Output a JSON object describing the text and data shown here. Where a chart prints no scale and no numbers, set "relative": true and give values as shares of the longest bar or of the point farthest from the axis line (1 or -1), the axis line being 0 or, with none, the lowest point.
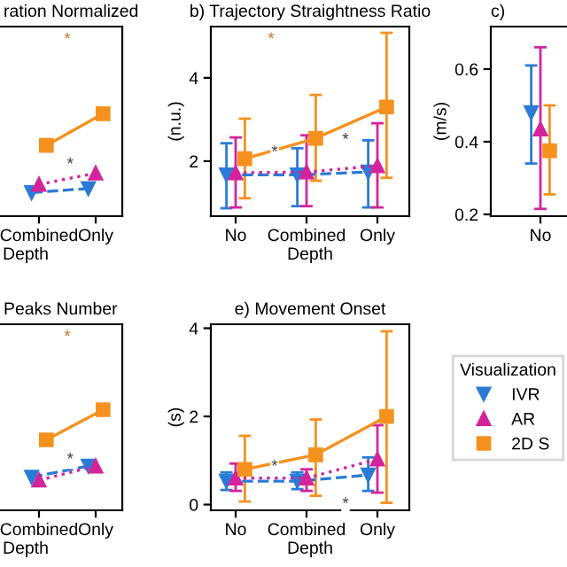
{
  "chart_data": [
    {
      "type": "line",
      "title": "ration Normalized",
      "xlabel": "Depth",
      "relative": true,
      "categories": [
        "Combined",
        "Only"
      ],
      "series": [
        {
          "color": "#2b7bd6",
          "line_style": "dashed",
          "marker": "triangle_down",
          "values": [
            0.23,
            0.27
          ]
        },
        {
          "color": "#d4249b",
          "line_style": "dotted",
          "marker": "triangle",
          "values": [
            0.31,
            0.42
          ]
        },
        {
          "color": "#f5911e",
          "line_style": "solid",
          "marker": "square",
          "values": [
            0.69,
            1.0
          ]
        }
      ],
      "annotations": [
        {
          "text": "*",
          "x": "Only",
          "y": 0.5
        },
        "*"
      ]
    },
    {
      "type": "line",
      "title": "b) Trajectory Straightness Ratio",
      "xlabel": "Depth",
      "ylabel": "(n.u.)",
      "categories": [
        "No",
        "Combined",
        "Only"
      ],
      "ylim": [
        0.68,
        5.23
      ],
      "yticks": [
        2,
        4
      ],
      "series": [
        {
          "color": "#2b7bd6",
          "line_style": "dashed",
          "marker": "triangle_down",
          "values": [
            1.67,
            1.67,
            1.74
          ],
          "errors": [
            [
              0.87,
              2.43
            ],
            [
              0.92,
              2.31
            ],
            [
              0.89,
              2.5
            ]
          ]
        },
        {
          "color": "#d4249b",
          "line_style": "dotted",
          "marker": "triangle",
          "values": [
            1.72,
            1.74,
            1.89
          ],
          "errors": [
            [
              0.89,
              2.57
            ],
            [
              0.92,
              2.62
            ],
            [
              0.89,
              2.91
            ]
          ]
        },
        {
          "color": "#f5911e",
          "line_style": "solid",
          "marker": "square",
          "values": [
            2.06,
            2.55,
            3.3
          ],
          "errors": [
            [
              1.11,
              3.02
            ],
            [
              1.53,
              3.59
            ],
            [
              1.6,
              5.08
            ]
          ]
        }
      ],
      "annotations": [
        {
          "text": "*",
          "x": "Combined",
          "y": 2.2
        },
        {
          "text": "*",
          "x": "Only",
          "y": 2.5
        },
        "*"
      ]
    },
    {
      "type": "line",
      "title": "c)",
      "ylabel": "(m/s)",
      "categories": [
        "No"
      ],
      "ylim": [
        0.195,
        0.717
      ],
      "yticks": [
        0.2,
        0.4,
        0.6
      ],
      "series": [
        {
          "color": "#2b7bd6",
          "line_style": "dashed",
          "marker": "triangle_down",
          "values": [
            0.48
          ],
          "errors": [
            [
              0.34,
              0.61
            ]
          ]
        },
        {
          "color": "#d4249b",
          "line_style": "dotted",
          "marker": "triangle",
          "values": [
            0.435
          ],
          "errors": [
            [
              0.215,
              0.66
            ]
          ]
        },
        {
          "color": "#f5911e",
          "line_style": "solid",
          "marker": "square",
          "values": [
            0.375
          ],
          "errors": [
            [
              0.255,
              0.5
            ]
          ]
        }
      ]
    },
    {
      "type": "line",
      "title": "Peaks Number",
      "xlabel": "Depth",
      "relative": true,
      "categories": [
        "Combined",
        "Only"
      ],
      "series": [
        {
          "color": "#2b7bd6",
          "line_style": "dashed",
          "marker": "triangle_down",
          "values": [
            0.33,
            0.44
          ]
        },
        {
          "color": "#d4249b",
          "line_style": "dotted",
          "marker": "triangle",
          "values": [
            0.3,
            0.44
          ]
        },
        {
          "color": "#f5911e",
          "line_style": "solid",
          "marker": "square",
          "values": [
            0.7,
            1.0
          ]
        }
      ],
      "annotations": [
        {
          "text": "*",
          "x": "Only",
          "y": 0.5
        },
        "*"
      ]
    },
    {
      "type": "line",
      "title": "e) Movement Onset",
      "xlabel": "Depth",
      "ylabel": "(s)",
      "categories": [
        "No",
        "Combined",
        "Only"
      ],
      "ylim": [
        -0.13,
        4.09
      ],
      "yticks": [
        0,
        2,
        4
      ],
      "legend": "right",
      "legend_title": "Visualization",
      "series": [
        {
          "name": "IVR",
          "color": "#2b7bd6",
          "line_style": "dashed",
          "marker": "triangle_down",
          "values": [
            0.53,
            0.53,
            0.67
          ],
          "errors": [
            [
              0.33,
              0.73
            ],
            [
              0.35,
              0.73
            ],
            [
              0.31,
              1.07
            ]
          ]
        },
        {
          "name": "AR",
          "color": "#d4249b",
          "line_style": "dotted",
          "marker": "triangle",
          "values": [
            0.6,
            0.6,
            1.03
          ],
          "errors": [
            [
              0.31,
              0.93
            ],
            [
              0.31,
              0.8
            ],
            [
              0.27,
              1.8
            ]
          ]
        },
        {
          "name": "2D S",
          "color": "#f5911e",
          "line_style": "solid",
          "marker": "square",
          "values": [
            0.8,
            1.13,
            2.0
          ],
          "errors": [
            [
              0.07,
              1.56
            ],
            [
              0.2,
              1.93
            ],
            [
              0.04,
              3.93
            ]
          ]
        }
      ],
      "annotations": [
        {
          "text": "*",
          "x": "Combined",
          "y": 0.85
        },
        {
          "text": "*",
          "x": "Only",
          "y": 0.0
        }
      ]
    }
  ]
}
